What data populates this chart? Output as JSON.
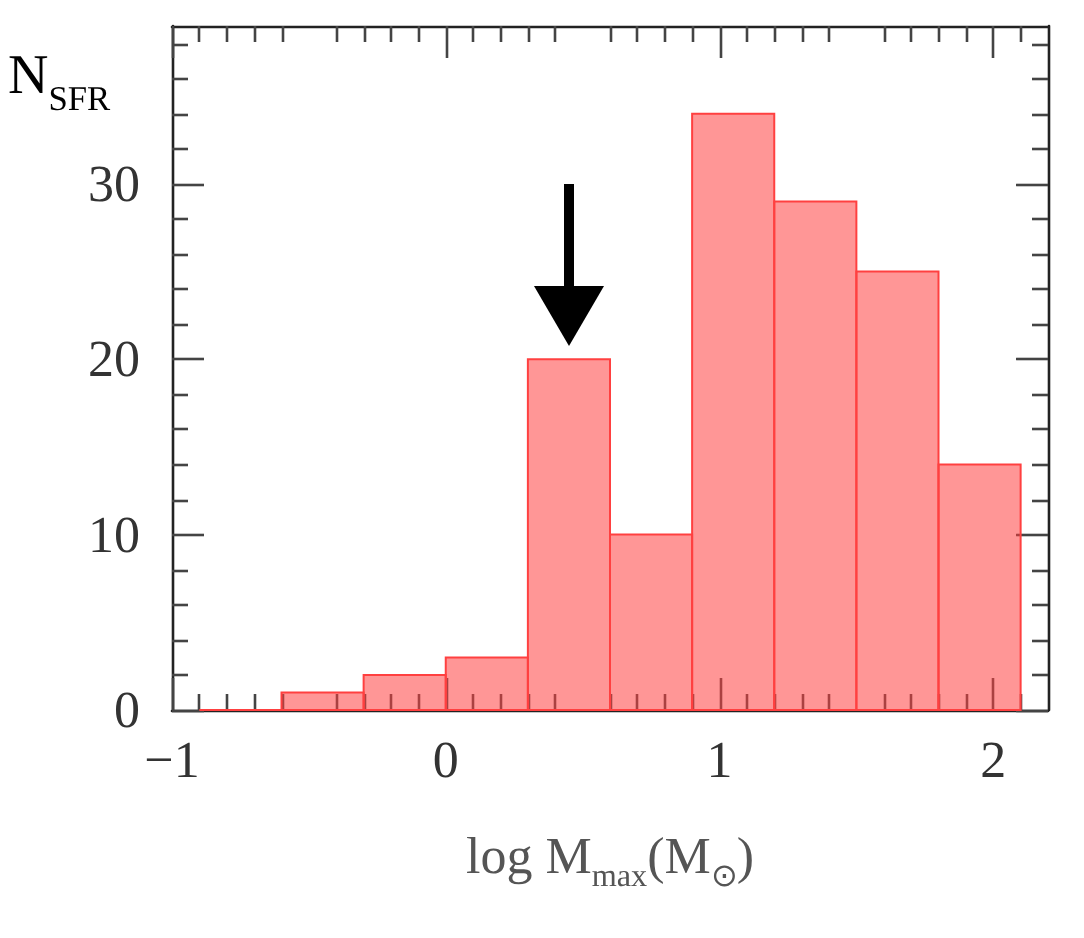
{
  "chart_data": {
    "type": "histogram",
    "xlabel": "log M$_{max}$(M$_{⊙}$)",
    "ylabel": "N$_{SFR}$",
    "bins": [
      -0.9,
      -0.6,
      -0.3,
      0,
      0.3,
      0.6,
      0.9,
      1.2,
      1.5,
      1.8,
      2.1
    ],
    "values": [
      0,
      1,
      2,
      3,
      20,
      10,
      34,
      29,
      25,
      14
    ],
    "color": "#ff4040",
    "xlim": [
      -1,
      2.2
    ],
    "xticks": [
      -1,
      0,
      1,
      2
    ],
    "ylim": [
      0,
      39
    ],
    "yticks": [
      0,
      10,
      20,
      30
    ]
  }
}
